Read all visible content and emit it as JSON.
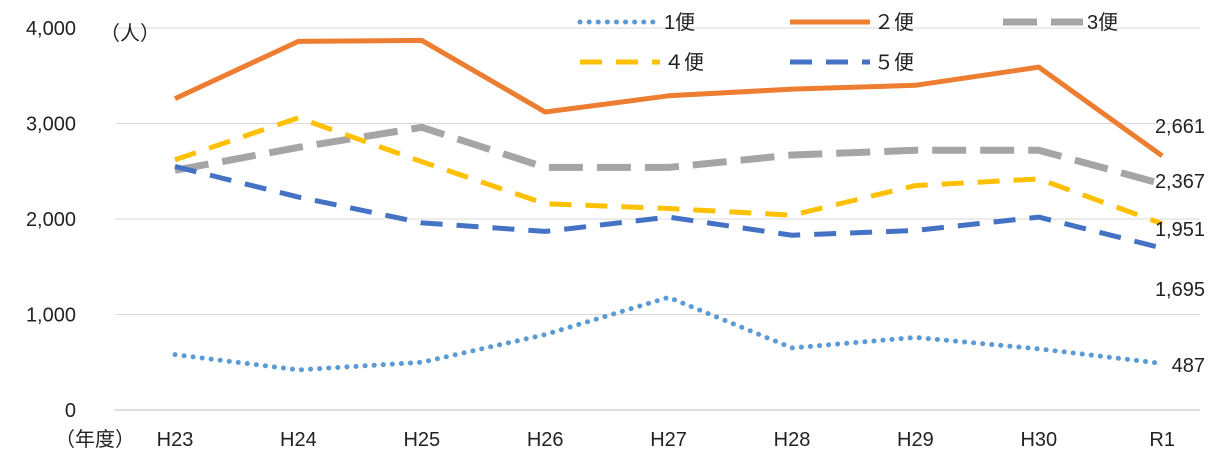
{
  "chart_data": {
    "type": "line",
    "ylabel": "（人）",
    "xlabel": "（年度）",
    "ylim": [
      0,
      4000
    ],
    "grid": true,
    "legend_position": "top",
    "y_ticks": [
      "0",
      "1,000",
      "2,000",
      "3,000",
      "4,000"
    ],
    "y_tick_values": [
      0,
      1000,
      2000,
      3000,
      4000
    ],
    "categories": [
      "H23",
      "H24",
      "H25",
      "H26",
      "H27",
      "H28",
      "H29",
      "H30",
      "R1"
    ],
    "series": [
      {
        "name": "1便",
        "color": "#5b9bd5",
        "style": "dotted",
        "values": [
          580,
          420,
          500,
          790,
          1180,
          650,
          760,
          640,
          487
        ]
      },
      {
        "name": "２便",
        "color": "#ed7d31",
        "style": "solid",
        "values": [
          3260,
          3860,
          3870,
          3120,
          3290,
          3360,
          3400,
          3590,
          2661
        ]
      },
      {
        "name": "3便",
        "color": "#a5a5a5",
        "style": "longdash",
        "values": [
          2510,
          2750,
          2960,
          2540,
          2540,
          2670,
          2720,
          2720,
          2367
        ]
      },
      {
        "name": "４便",
        "color": "#ffc000",
        "style": "dash",
        "values": [
          2620,
          3060,
          2600,
          2160,
          2110,
          2040,
          2350,
          2420,
          1951
        ]
      },
      {
        "name": "５便",
        "color": "#4472c4",
        "style": "dash",
        "values": [
          2550,
          2230,
          1960,
          1870,
          2020,
          1830,
          1880,
          2020,
          1695
        ]
      }
    ],
    "end_labels": [
      "2,661",
      "2,367",
      "1,951",
      "1,695",
      "487"
    ]
  }
}
